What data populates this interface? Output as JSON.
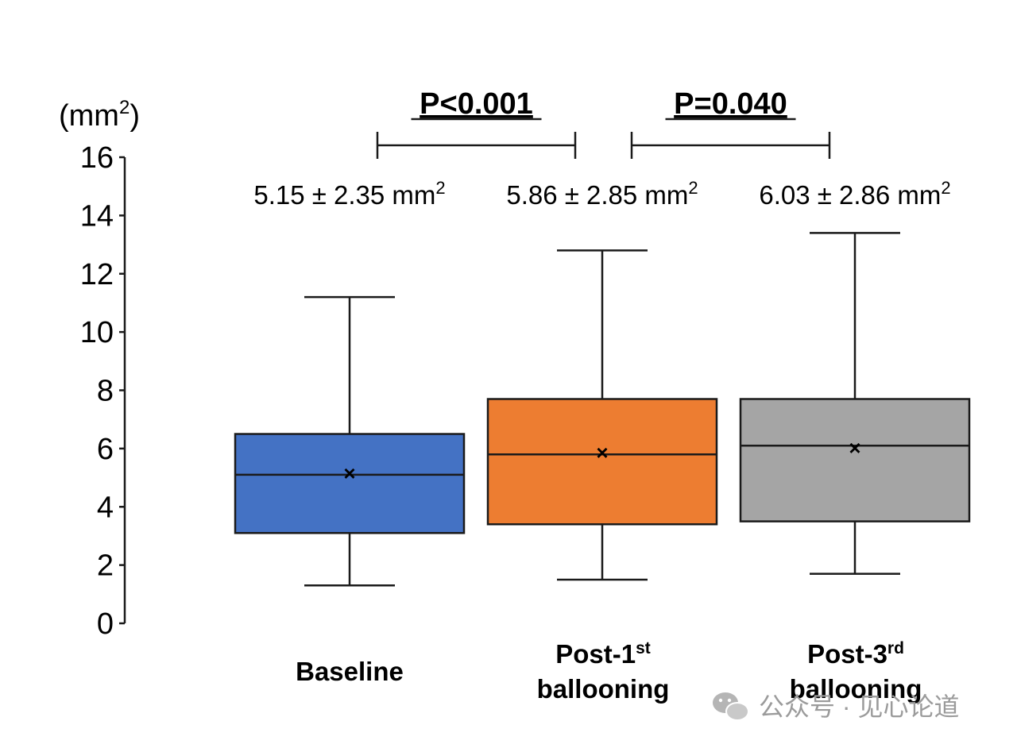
{
  "chart_data": {
    "type": "box",
    "y_unit_label": "(mm",
    "y_unit_superscript": "2",
    "y_unit_close": ")",
    "ylim": [
      0,
      16
    ],
    "yticks": [
      0,
      2,
      4,
      6,
      8,
      10,
      12,
      14,
      16
    ],
    "categories": [
      {
        "line1": "Baseline",
        "sup": "",
        "line2": ""
      },
      {
        "line1": "Post-1",
        "sup": "st",
        "line2": "ballooning"
      },
      {
        "line1": "Post-3",
        "sup": "rd",
        "line2": "ballooning"
      }
    ],
    "series": [
      {
        "name": "Baseline",
        "color": "#4472c4",
        "whisker_low": 1.3,
        "q1": 3.1,
        "median": 5.1,
        "q3": 6.5,
        "whisker_high": 11.2,
        "mean": 5.15,
        "stat_text": "5.15 ± 2.35 mm",
        "stat_sup": "2"
      },
      {
        "name": "Post-1st ballooning",
        "color": "#ed7d31",
        "whisker_low": 1.5,
        "q1": 3.4,
        "median": 5.8,
        "q3": 7.7,
        "whisker_high": 12.8,
        "mean": 5.86,
        "stat_text": "5.86 ± 2.85 mm",
        "stat_sup": "2"
      },
      {
        "name": "Post-3rd ballooning",
        "color": "#a5a5a5",
        "whisker_low": 1.7,
        "q1": 3.5,
        "median": 6.1,
        "q3": 7.7,
        "whisker_high": 13.4,
        "mean": 6.03,
        "stat_text": "6.03 ± 2.86 mm",
        "stat_sup": "2"
      }
    ],
    "comparisons": [
      {
        "from": 0,
        "to": 1,
        "label": "P<0.001"
      },
      {
        "from": 1,
        "to": 2,
        "label": "P=0.040"
      }
    ],
    "mean_marker": "×"
  },
  "watermark": {
    "text": "公众号 · 见心论道",
    "icon": "wechat-icon"
  }
}
